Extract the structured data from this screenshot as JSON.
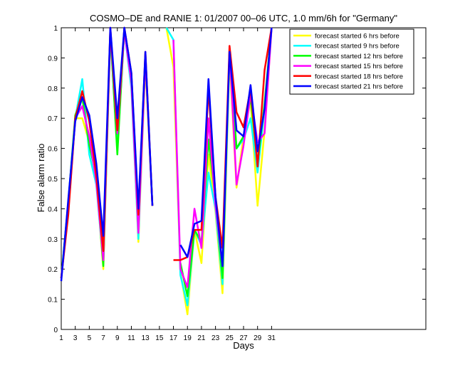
{
  "chart_data": {
    "type": "line",
    "title": "COSMO–DE and RANIE 1: 01/2007 00–06 UTC, 1.0 mm/6h for \"Germany\"",
    "xlabel": "Days",
    "ylabel": "False alarm ratio",
    "xlim": [
      1,
      53
    ],
    "ylim": [
      0,
      1
    ],
    "xticks": [
      1,
      3,
      5,
      7,
      9,
      11,
      13,
      15,
      17,
      19,
      21,
      23,
      25,
      27,
      29,
      31
    ],
    "yticks": [
      0,
      0.1,
      0.2,
      0.3,
      0.4,
      0.5,
      0.6,
      0.7,
      0.8,
      0.9,
      1
    ],
    "ytick_labels": [
      "0",
      "0.1",
      "0.2",
      "0.3",
      "0.4",
      "0.5",
      "0.6",
      "0.7",
      "0.8",
      "0.9",
      "1"
    ],
    "grid": false,
    "legend_position": "top-right",
    "x": [
      1,
      2,
      3,
      4,
      5,
      6,
      7,
      8,
      9,
      10,
      11,
      12,
      13,
      14,
      15,
      16,
      17,
      18,
      19,
      20,
      21,
      22,
      23,
      24,
      25,
      26,
      27,
      28,
      29,
      30,
      31
    ],
    "series": [
      {
        "name": "forecast started 6 hrs before",
        "color": "#ffff00",
        "values": [
          0.17,
          0.4,
          0.7,
          0.7,
          0.62,
          0.5,
          0.2,
          0.97,
          0.63,
          0.99,
          0.82,
          0.29,
          0.88,
          0.41,
          null,
          1.0,
          0.87,
          0.19,
          0.05,
          0.33,
          0.22,
          0.58,
          0.39,
          0.12,
          0.9,
          0.47,
          0.64,
          0.76,
          0.41,
          0.66,
          1.0
        ]
      },
      {
        "name": "forecast started 9 hrs before",
        "color": "#00ffff",
        "values": [
          0.17,
          0.42,
          0.7,
          0.83,
          0.58,
          0.48,
          0.22,
          0.98,
          0.6,
          0.99,
          0.8,
          0.3,
          0.9,
          0.41,
          null,
          1.0,
          0.96,
          0.18,
          0.08,
          0.33,
          0.28,
          0.52,
          0.4,
          0.15,
          0.91,
          0.6,
          0.63,
          0.7,
          0.52,
          0.73,
          1.0
        ]
      },
      {
        "name": "forecast started 12 hrs before",
        "color": "#00ff00",
        "values": [
          0.17,
          0.42,
          0.71,
          0.77,
          0.61,
          0.51,
          0.21,
          0.99,
          0.58,
          1.0,
          0.82,
          0.35,
          0.9,
          0.41,
          null,
          null,
          null,
          0.22,
          0.11,
          0.33,
          0.29,
          0.63,
          0.43,
          0.17,
          0.92,
          0.6,
          0.64,
          0.77,
          0.55,
          0.75,
          1.0
        ]
      },
      {
        "name": "forecast started 15 hrs before",
        "color": "#ff00ff",
        "values": [
          0.17,
          0.39,
          0.7,
          0.74,
          0.64,
          0.49,
          0.23,
          0.99,
          0.65,
          0.99,
          0.82,
          0.32,
          0.9,
          0.41,
          null,
          null,
          0.96,
          0.2,
          0.14,
          0.4,
          0.27,
          0.7,
          0.41,
          0.21,
          0.93,
          0.48,
          0.61,
          0.78,
          0.62,
          0.65,
          1.0
        ]
      },
      {
        "name": "forecast started 18 hrs before",
        "color": "#ff0000",
        "values": [
          0.17,
          0.38,
          0.7,
          0.79,
          0.69,
          0.51,
          0.26,
          1.0,
          0.66,
          1.0,
          0.85,
          0.38,
          0.92,
          0.41,
          null,
          null,
          0.23,
          0.23,
          0.24,
          0.33,
          0.33,
          0.8,
          0.44,
          0.27,
          0.94,
          0.72,
          0.67,
          0.8,
          0.54,
          0.86,
          1.0
        ]
      },
      {
        "name": "forecast started 21 hrs before",
        "color": "#0000ff",
        "values": [
          0.16,
          0.43,
          0.69,
          0.77,
          0.71,
          0.55,
          0.31,
          1.0,
          0.7,
          1.0,
          0.85,
          0.4,
          0.92,
          0.41,
          null,
          null,
          null,
          0.28,
          0.24,
          0.35,
          0.36,
          0.83,
          0.44,
          0.21,
          0.92,
          0.66,
          0.64,
          0.81,
          0.59,
          0.73,
          1.0
        ]
      }
    ]
  }
}
